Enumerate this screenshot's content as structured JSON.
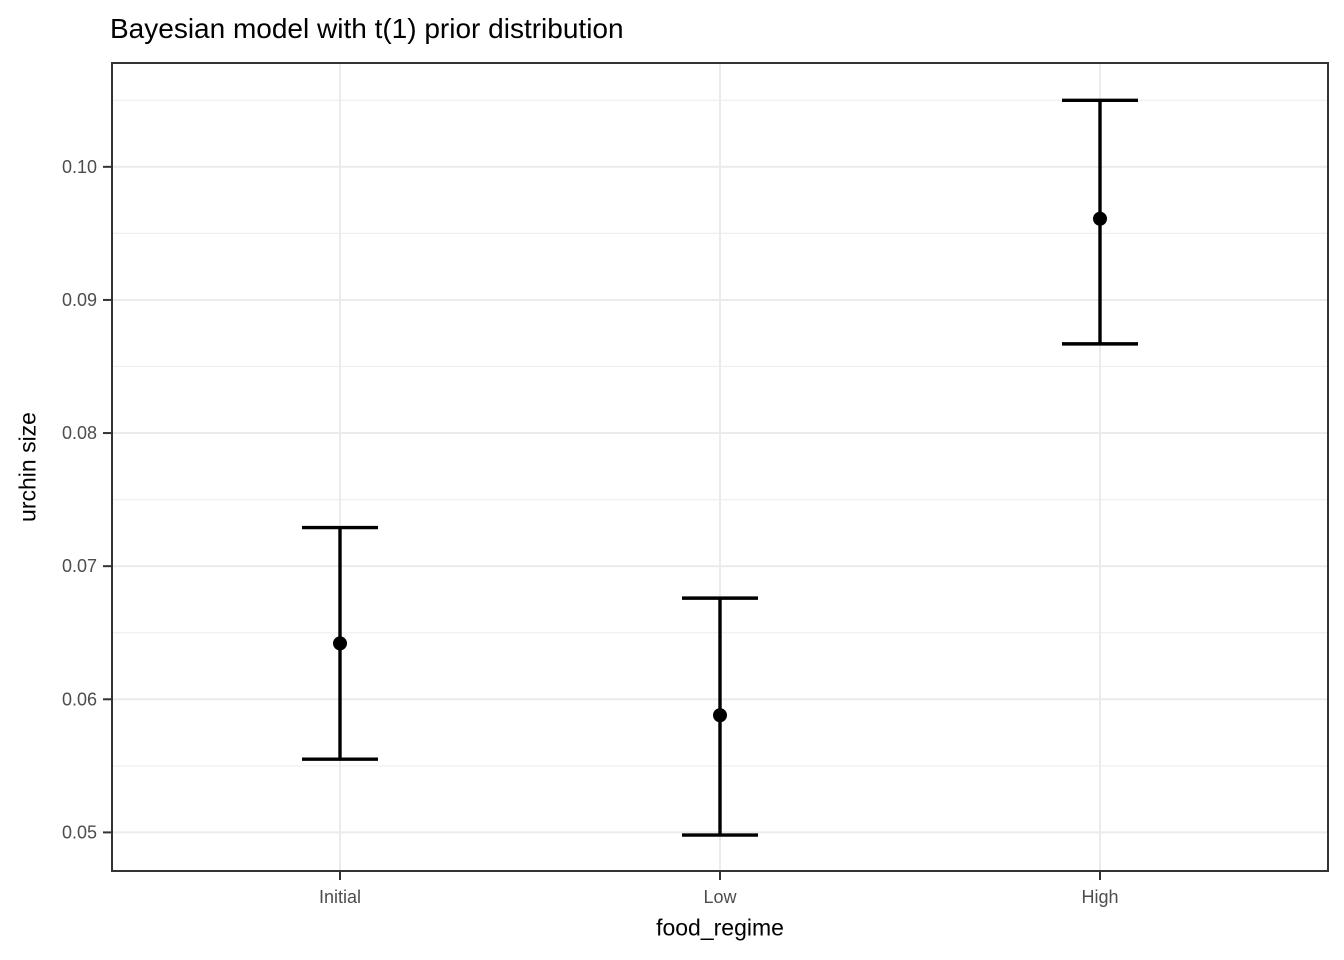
{
  "chart_data": {
    "type": "pointrange",
    "title": "Bayesian model with t(1) prior distribution",
    "xlabel": "food_regime",
    "ylabel": "urchin size",
    "categories": [
      "Initial",
      "Low",
      "High"
    ],
    "points": [
      {
        "category": "Initial",
        "pred": 0.0642,
        "lower": 0.0555,
        "upper": 0.0729
      },
      {
        "category": "Low",
        "pred": 0.0588,
        "lower": 0.0498,
        "upper": 0.0676
      },
      {
        "category": "High",
        "pred": 0.0961,
        "lower": 0.0867,
        "upper": 0.105
      }
    ],
    "yticks": [
      0.05,
      0.06,
      0.07,
      0.08,
      0.09,
      0.1
    ],
    "ytick_labels": [
      "0.05",
      "0.06",
      "0.07",
      "0.08",
      "0.09",
      "0.10"
    ],
    "yticks_minor": [
      0.055,
      0.065,
      0.075,
      0.085,
      0.095,
      0.105
    ],
    "ylim": [
      0.0471,
      0.1078
    ],
    "grid": "horizontal major+minor gridlines; vertical major gridline at each category",
    "legend": "none",
    "colors": {
      "background": "#FFFFFF",
      "panel_background": "#FFFFFF",
      "panel_border": "#333333",
      "grid_major": "#EBEBEB",
      "grid_minor": "#EFEFEF",
      "tick_mark": "#333333",
      "tick_label": "#4D4D4D",
      "axis_title": "#000000",
      "title": "#000000",
      "point": "#000000",
      "errorbar": "#000000"
    }
  }
}
